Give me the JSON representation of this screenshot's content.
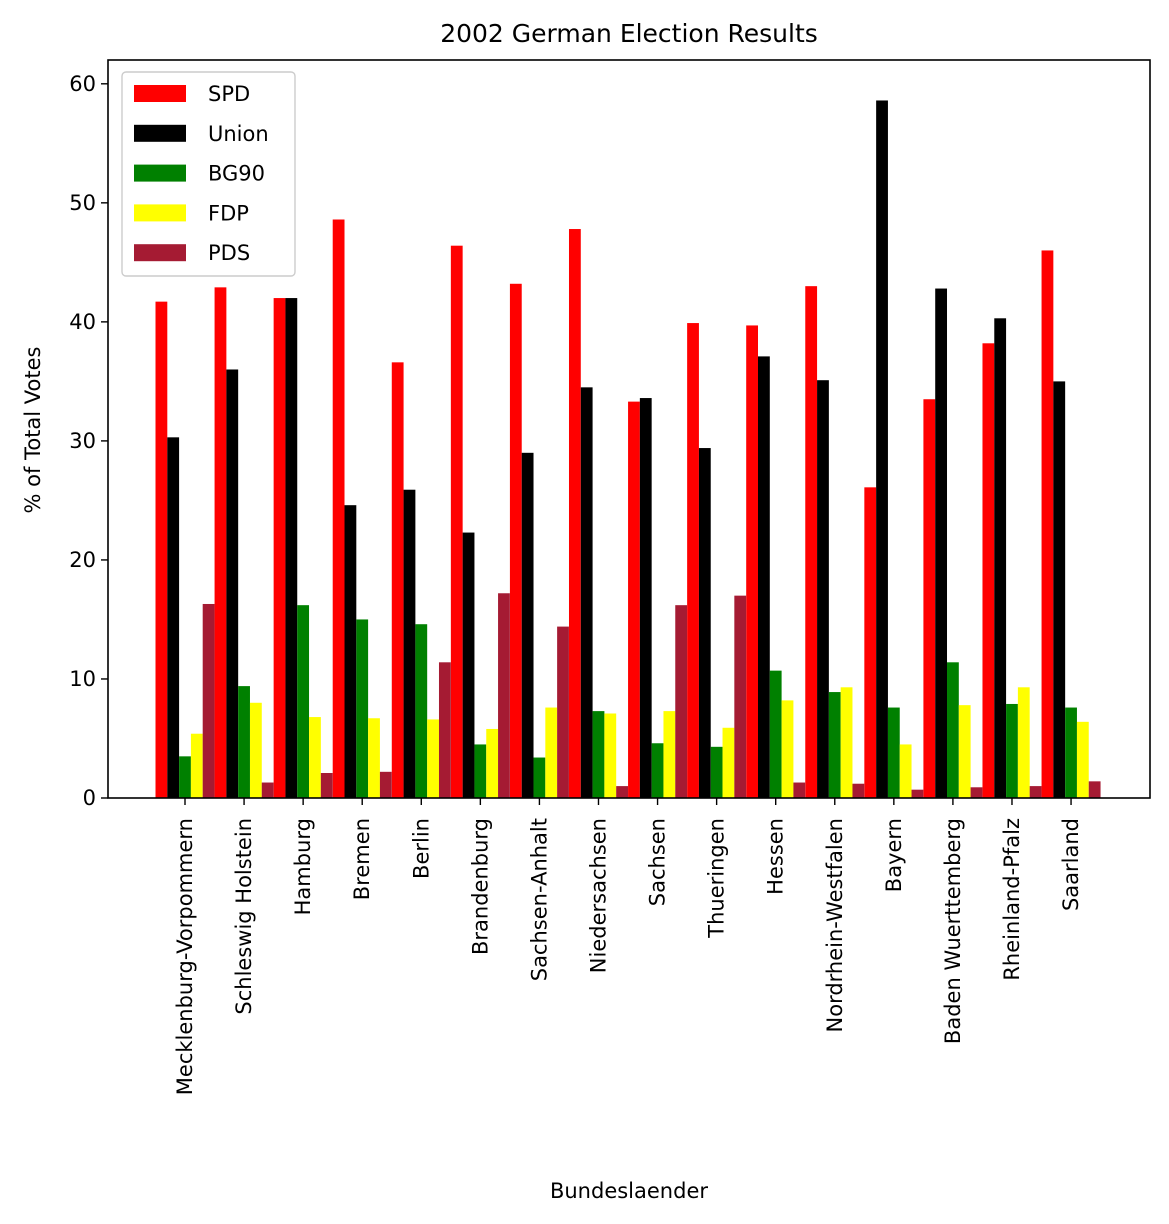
{
  "chart_data": {
    "type": "bar",
    "title": "2002 German Election Results",
    "xlabel": "Bundeslaender",
    "ylabel": "% of Total Votes",
    "ylim": [
      0,
      62
    ],
    "yticks": [
      0,
      10,
      20,
      30,
      40,
      50,
      60
    ],
    "grid": false,
    "legend_position": "top-left",
    "categories": [
      "Mecklenburg-Vorpommern",
      "Schleswig Holstein",
      "Hamburg",
      "Bremen",
      "Berlin",
      "Brandenburg",
      "Sachsen-Anhalt",
      "Niedersachsen",
      "Sachsen",
      "Thueringen",
      "Hessen",
      "Nordrhein-Westfalen",
      "Bayern",
      "Baden Wuerttemberg",
      "Rheinland-Pfalz",
      "Saarland"
    ],
    "series": [
      {
        "name": "SPD",
        "color": "#ff0000",
        "values": [
          41.7,
          42.9,
          42.0,
          48.6,
          36.6,
          46.4,
          43.2,
          47.8,
          33.3,
          39.9,
          39.7,
          43.0,
          26.1,
          33.5,
          38.2,
          46.0
        ]
      },
      {
        "name": "Union",
        "color": "#000000",
        "values": [
          30.3,
          36.0,
          42.0,
          24.6,
          25.9,
          22.3,
          29.0,
          34.5,
          33.6,
          29.4,
          37.1,
          35.1,
          58.6,
          42.8,
          40.3,
          35.0
        ]
      },
      {
        "name": "BG90",
        "color": "#008000",
        "values": [
          3.5,
          9.4,
          16.2,
          15.0,
          14.6,
          4.5,
          3.4,
          7.3,
          4.6,
          4.3,
          10.7,
          8.9,
          7.6,
          11.4,
          7.9,
          7.6
        ]
      },
      {
        "name": "FDP",
        "color": "#ffff00",
        "values": [
          5.4,
          8.0,
          6.8,
          6.7,
          6.6,
          5.8,
          7.6,
          7.1,
          7.3,
          5.9,
          8.2,
          9.3,
          4.5,
          7.8,
          9.3,
          6.4
        ]
      },
      {
        "name": "PDS",
        "color": "#a51b33",
        "values": [
          16.3,
          1.3,
          2.1,
          2.2,
          11.4,
          17.2,
          14.4,
          1.0,
          16.2,
          17.0,
          1.3,
          1.2,
          0.7,
          0.9,
          1.0,
          1.4
        ]
      }
    ]
  }
}
